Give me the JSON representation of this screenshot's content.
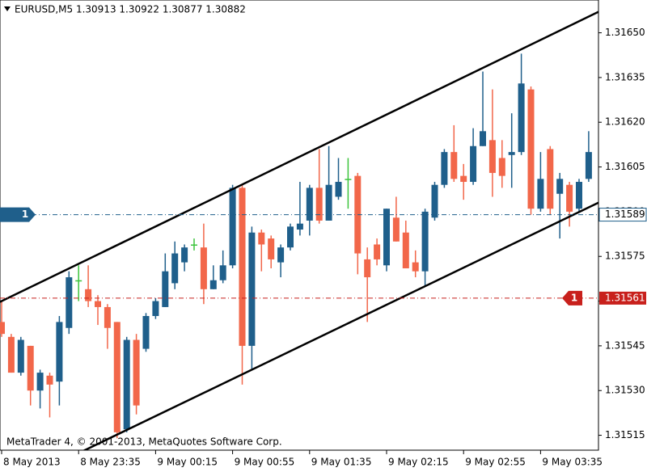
{
  "chart_data": {
    "type": "candlestick",
    "header": "EURUSD,M5  1.30913 1.30922 1.30877 1.30882",
    "footer": "MetaTrader 4, © 2001-2013, MetaQuotes Software Corp.",
    "categories": [
      "8 May 2013",
      null,
      null,
      null,
      null,
      null,
      null,
      null,
      "8 May 23:35",
      null,
      null,
      null,
      null,
      null,
      null,
      null,
      "9 May 00:15",
      null,
      null,
      null,
      null,
      null,
      null,
      null,
      "9 May 00:55",
      null,
      null,
      null,
      null,
      null,
      null,
      null,
      "9 May 01:35",
      null,
      null,
      null,
      null,
      null,
      null,
      null,
      "9 May 02:15",
      null,
      null,
      null,
      null,
      null,
      null,
      null,
      "9 May 02:55",
      null,
      null,
      null,
      null,
      null,
      null,
      null,
      "9 May 03:35",
      null,
      null,
      null,
      null,
      null
    ],
    "open": [
      1.31553,
      1.31548,
      1.31536,
      1.31545,
      1.3153,
      1.31535,
      1.31533,
      1.31551,
      1.31567,
      1.31564,
      1.3156,
      1.31558,
      1.31553,
      1.31517,
      1.31547,
      1.31544,
      1.31555,
      1.31558,
      1.31566,
      1.31573,
      1.31579,
      1.31578,
      1.31564,
      1.31567,
      1.31572,
      1.31598,
      1.31545,
      1.31583,
      1.31581,
      1.31573,
      1.31578,
      1.31584,
      1.31587,
      1.31598,
      1.31587,
      1.31595,
      1.31601,
      1.31602,
      1.31574,
      1.31579,
      1.31572,
      1.31588,
      1.31583,
      1.31573,
      1.3157,
      1.31588,
      1.31599,
      1.3161,
      1.31602,
      1.316,
      1.31612,
      1.31614,
      1.31608,
      1.31609,
      1.3161,
      1.31631,
      1.31591,
      1.31611,
      1.31596,
      1.31599,
      1.31591,
      1.31601
    ],
    "high": [
      1.3156,
      1.31549,
      1.31548,
      1.31545,
      1.31537,
      1.31536,
      1.31555,
      1.3157,
      1.31572,
      1.31572,
      1.31562,
      1.31559,
      1.31553,
      1.31548,
      1.31549,
      1.31556,
      1.31561,
      1.31576,
      1.3158,
      1.31579,
      1.31581,
      1.31586,
      1.31572,
      1.31577,
      1.31599,
      1.31599,
      1.31585,
      1.31584,
      1.31582,
      1.31579,
      1.31586,
      1.316,
      1.31599,
      1.31611,
      1.31612,
      1.31608,
      1.31608,
      1.31603,
      1.31578,
      1.31581,
      1.31591,
      1.31595,
      1.31587,
      1.31577,
      1.31591,
      1.316,
      1.31611,
      1.31619,
      1.31606,
      1.31618,
      1.31637,
      1.31631,
      1.31614,
      1.31623,
      1.31643,
      1.31632,
      1.3161,
      1.31612,
      1.31603,
      1.316,
      1.31601,
      1.31617
    ],
    "low": [
      1.31548,
      1.31536,
      1.31535,
      1.31525,
      1.31524,
      1.31521,
      1.31525,
      1.31549,
      1.3156,
      1.31558,
      1.31552,
      1.31544,
      1.31514,
      1.31516,
      1.31522,
      1.31543,
      1.31554,
      1.31558,
      1.31564,
      1.3157,
      1.31577,
      1.31559,
      1.31564,
      1.31566,
      1.31571,
      1.31532,
      1.31537,
      1.3157,
      1.31571,
      1.31568,
      1.31577,
      1.31582,
      1.31582,
      1.31586,
      1.31587,
      1.31594,
      1.31591,
      1.31569,
      1.31553,
      1.31572,
      1.3157,
      1.3158,
      1.31571,
      1.31568,
      1.31565,
      1.31587,
      1.31598,
      1.316,
      1.31594,
      1.31599,
      1.31612,
      1.31595,
      1.31598,
      1.31598,
      1.31609,
      1.31589,
      1.3159,
      1.31589,
      1.31581,
      1.31585,
      1.3159,
      1.316
    ],
    "close": [
      1.31549,
      1.31536,
      1.31547,
      1.3153,
      1.31536,
      1.31532,
      1.31553,
      1.31568,
      1.31567,
      1.3156,
      1.31558,
      1.31551,
      1.31516,
      1.31547,
      1.31525,
      1.31555,
      1.3156,
      1.3157,
      1.31576,
      1.31578,
      1.31579,
      1.31564,
      1.31567,
      1.31572,
      1.31598,
      1.31545,
      1.31583,
      1.31579,
      1.31574,
      1.31578,
      1.31585,
      1.31586,
      1.31598,
      1.31587,
      1.31599,
      1.316,
      1.31601,
      1.31576,
      1.31568,
      1.31574,
      1.31591,
      1.3158,
      1.31571,
      1.3157,
      1.3159,
      1.31599,
      1.3161,
      1.31601,
      1.316,
      1.31612,
      1.31617,
      1.31603,
      1.31602,
      1.3161,
      1.31633,
      1.31591,
      1.31601,
      1.31591,
      1.31601,
      1.3159,
      1.316,
      1.3161
    ],
    "up_color": "#1f5f8b",
    "down_color": "#f2674a",
    "doji_color": "#3cc43c",
    "ylim": [
      1.3151,
      1.31661
    ],
    "yticks": [
      {
        "value": 1.3165,
        "label": "1.31650"
      },
      {
        "value": 1.31635,
        "label": "1.31635"
      },
      {
        "value": 1.3162,
        "label": "1.31620"
      },
      {
        "value": 1.31605,
        "label": "1.31605"
      },
      {
        "value": 1.3159,
        "label": "1.31590"
      },
      {
        "value": 1.31575,
        "label": "1.31575"
      },
      {
        "value": 1.3156,
        "label": "1.31560"
      },
      {
        "value": 1.31545,
        "label": "1.31545"
      },
      {
        "value": 1.3153,
        "label": "1.31530"
      },
      {
        "value": 1.31515,
        "label": "1.31515"
      }
    ],
    "grid": false,
    "hlines": [
      {
        "value": 1.31589,
        "marker": "1",
        "color": "#1f5f8b",
        "marker_side": "left"
      },
      {
        "value": 1.31561,
        "marker": "1",
        "color": "#c8201c",
        "marker_side": "right"
      }
    ],
    "trendlines": [
      {
        "x": [
          0,
          62
        ],
        "y": [
          1.3156,
          1.31657
        ]
      },
      {
        "x": [
          8,
          62
        ],
        "y": [
          1.31509,
          1.31593
        ]
      }
    ]
  }
}
